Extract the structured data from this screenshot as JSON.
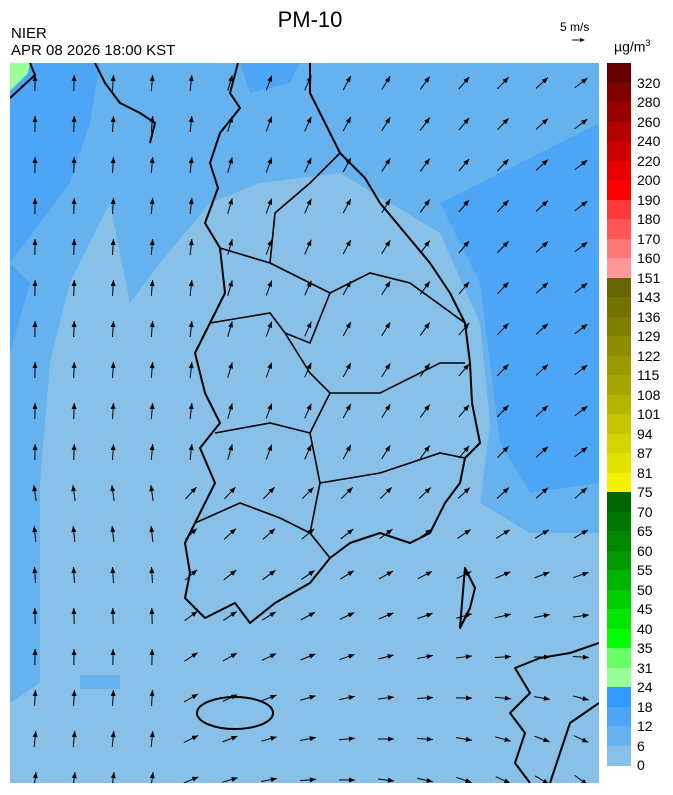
{
  "header": {
    "title": "PM-10",
    "agency": "NIER",
    "timestamp": "APR 08 2026 18:00 KST",
    "wind_reference": "5 m/s",
    "unit": "µg/m",
    "unit_superscript": "3"
  },
  "colorbar": {
    "labels": [
      "320",
      "280",
      "260",
      "240",
      "220",
      "200",
      "190",
      "180",
      "170",
      "160",
      "151",
      "143",
      "136",
      "129",
      "122",
      "115",
      "108",
      "101",
      "94",
      "87",
      "81",
      "75",
      "70",
      "65",
      "60",
      "55",
      "50",
      "45",
      "40",
      "35",
      "31",
      "24",
      "18",
      "12",
      "6",
      "0"
    ],
    "colors": [
      "#660000",
      "#800000",
      "#990000",
      "#b30000",
      "#cc0000",
      "#e60000",
      "#ff0000",
      "#ff3a3a",
      "#ff5555",
      "#ff7777",
      "#ff9999",
      "#666600",
      "#737300",
      "#808000",
      "#8c8c00",
      "#999900",
      "#a6a600",
      "#b5b500",
      "#c6c600",
      "#d4d400",
      "#e2e200",
      "#f2f200",
      "#006600",
      "#007700",
      "#008800",
      "#009900",
      "#00b300",
      "#00cc00",
      "#00e600",
      "#00ff00",
      "#66ff66",
      "#99ff99",
      "#3399ff",
      "#4da6f5",
      "#66b2ee",
      "#88c0e8",
      "#99cce6"
    ]
  },
  "map": {
    "field_colors": {
      "bin_0_6": "#99cce6",
      "bin_6_12": "#88c0e8",
      "bin_12_18": "#66b2ee",
      "bin_18_24": "#4da6f5",
      "bin_24_31": "#3399ff",
      "bin_31_35": "#99ff99"
    },
    "coastline_color": "#000000",
    "boundary_color": "#b0c4d8"
  }
}
